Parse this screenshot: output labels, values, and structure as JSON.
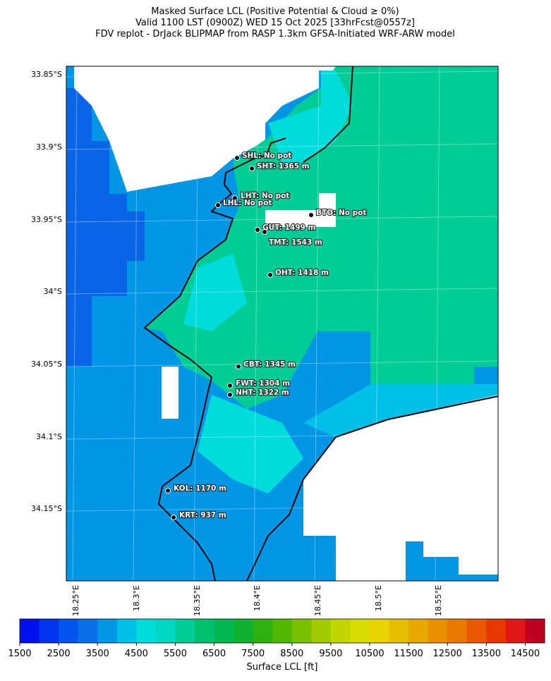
{
  "header": {
    "title_lines": [
      "Masked Surface LCL (Positive Potential & Cloud ≥ 0%)",
      "Valid 1100 LST (0900Z) WED 15 Oct 2025 [33hrFcst@0557z]",
      "FDV replot - DrJack BLIPMAP from RASP 1.3km GFSA-Initiated WRF-ARW model"
    ]
  },
  "map": {
    "lat_labels": [
      "33.85°S",
      "33.9°S",
      "33.95°S",
      "34°S",
      "34.05°S",
      "34.1°S",
      "34.15°S"
    ],
    "lon_labels": [
      "18.25°E",
      "18.3°E",
      "18.35°E",
      "18.4°E",
      "18.45°E",
      "18.5°E",
      "18.55°E"
    ],
    "stations": [
      {
        "label": "SHL: No pot"
      },
      {
        "label": "SHT: 1365 m"
      },
      {
        "label": "LHT: No pot"
      },
      {
        "label": "LHL: No pot"
      },
      {
        "label": "BTO: No pot"
      },
      {
        "label": "GUT: 1499 m"
      },
      {
        "label": "TMT: 1543 m"
      },
      {
        "label": "OHT: 1418 m"
      },
      {
        "label": "CBT: 1345 m"
      },
      {
        "label": "FWT: 1304 m"
      },
      {
        "label": "NHT: 1322 m"
      },
      {
        "label": "KOL: 1170 m"
      },
      {
        "label": "KRT: 937 m"
      }
    ]
  },
  "colorbar": {
    "label": "Surface LCL [ft]",
    "lim": [
      1500,
      15000
    ],
    "ticks": [
      1500,
      2500,
      3500,
      4500,
      5500,
      6500,
      7500,
      8500,
      9500,
      10500,
      11500,
      12500,
      13500,
      14500
    ],
    "colors": [
      "#0011ee",
      "#0033ee",
      "#0055ee",
      "#0a70e6",
      "#0096e6",
      "#00c0e8",
      "#00dcdc",
      "#00d8c0",
      "#00cc96",
      "#00c070",
      "#00b850",
      "#10b030",
      "#30b010",
      "#50b800",
      "#78c000",
      "#a0cc00",
      "#c0d800",
      "#d8dc00",
      "#e8d400",
      "#e8c000",
      "#e8a800",
      "#e89000",
      "#e87800",
      "#e85800",
      "#e83800",
      "#e01818",
      "#c00020"
    ]
  }
}
